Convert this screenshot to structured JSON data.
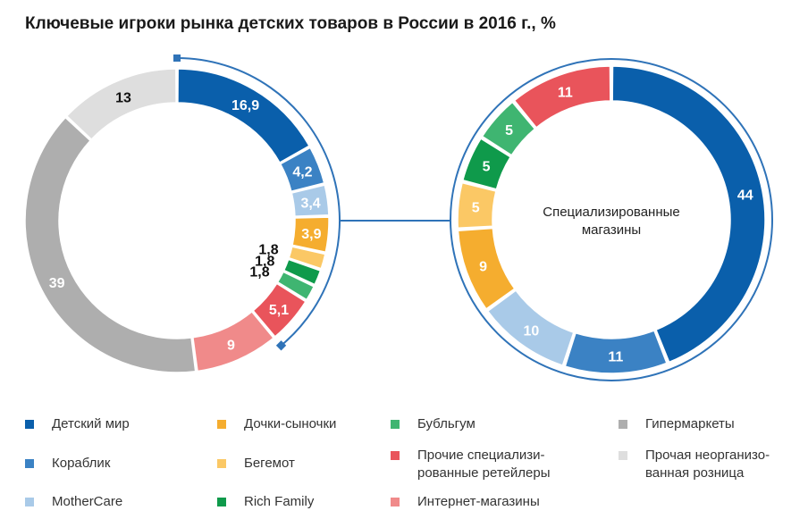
{
  "title": "Ключевые игроки рынка детских товаров в России в 2016 г., %",
  "chart_data": [
    {
      "type": "pie",
      "variant": "donut",
      "name": "market-overall",
      "slices": [
        {
          "label": "Детский мир",
          "value": 16.9,
          "display": "16,9",
          "color": "#0a5fab"
        },
        {
          "label": "Кораблик",
          "value": 4.2,
          "display": "4,2",
          "color": "#3b82c4"
        },
        {
          "label": "MotherCare",
          "value": 3.4,
          "display": "3,4",
          "color": "#a9cae8"
        },
        {
          "label": "Дочки-сыночки",
          "value": 3.9,
          "display": "3,9",
          "color": "#f5ad2f"
        },
        {
          "label": "Бегемот",
          "value": 1.8,
          "display": "1,8",
          "color": "#fbc865"
        },
        {
          "label": "Rich Family",
          "value": 1.8,
          "display": "1,8",
          "color": "#0f9a4b"
        },
        {
          "label": "Бубльгум",
          "value": 1.8,
          "display": "1,8",
          "color": "#3fb571"
        },
        {
          "label": "Прочие специализированные ретейлеры",
          "value": 5.1,
          "display": "5,1",
          "color": "#e9545b"
        },
        {
          "label": "Интернет-магазины",
          "value": 9,
          "display": "9",
          "color": "#f08a8a"
        },
        {
          "label": "Гипермаркеты",
          "value": 39,
          "display": "39",
          "color": "#aeaeae"
        },
        {
          "label": "Прочая неорганизованная розница",
          "value": 13,
          "display": "13",
          "color": "#dedede"
        }
      ]
    },
    {
      "type": "pie",
      "variant": "donut",
      "name": "specialized-stores",
      "center_label": "Специализированные\nмагазины",
      "slices": [
        {
          "label": "Детский мир",
          "value": 44,
          "display": "44",
          "color": "#0a5fab"
        },
        {
          "label": "Кораблик",
          "value": 11,
          "display": "11",
          "color": "#3b82c4"
        },
        {
          "label": "MotherCare",
          "value": 10,
          "display": "10",
          "color": "#a9cae8"
        },
        {
          "label": "Дочки-сыночки",
          "value": 9,
          "display": "9",
          "color": "#f5ad2f"
        },
        {
          "label": "Бегемот",
          "value": 5,
          "display": "5",
          "color": "#fbc865"
        },
        {
          "label": "Rich Family",
          "value": 5,
          "display": "5",
          "color": "#0f9a4b"
        },
        {
          "label": "Бубльгум",
          "value": 5,
          "display": "5",
          "color": "#3fb571"
        },
        {
          "label": "Прочие специализированные ретейлеры",
          "value": 11,
          "display": "11",
          "color": "#e9545b"
        }
      ]
    }
  ],
  "legend": [
    {
      "label": "Детский мир",
      "color": "#0a5fab"
    },
    {
      "label": "Кораблик",
      "color": "#3b82c4"
    },
    {
      "label": "MotherCare",
      "color": "#a9cae8"
    },
    {
      "label": "Дочки-сыночки",
      "color": "#f5ad2f"
    },
    {
      "label": "Бегемот",
      "color": "#fbc865"
    },
    {
      "label": "Rich Family",
      "color": "#0f9a4b"
    },
    {
      "label": "Бубльгум",
      "color": "#3fb571"
    },
    {
      "label": "Прочие специализи-\nрованные ретейлеры",
      "color": "#e9545b"
    },
    {
      "label": "Интернет-магазины",
      "color": "#f08a8a"
    },
    {
      "label": "Гипермаркеты",
      "color": "#aeaeae"
    },
    {
      "label": "Прочая неорганизо-\nванная розница",
      "color": "#dedede"
    }
  ]
}
